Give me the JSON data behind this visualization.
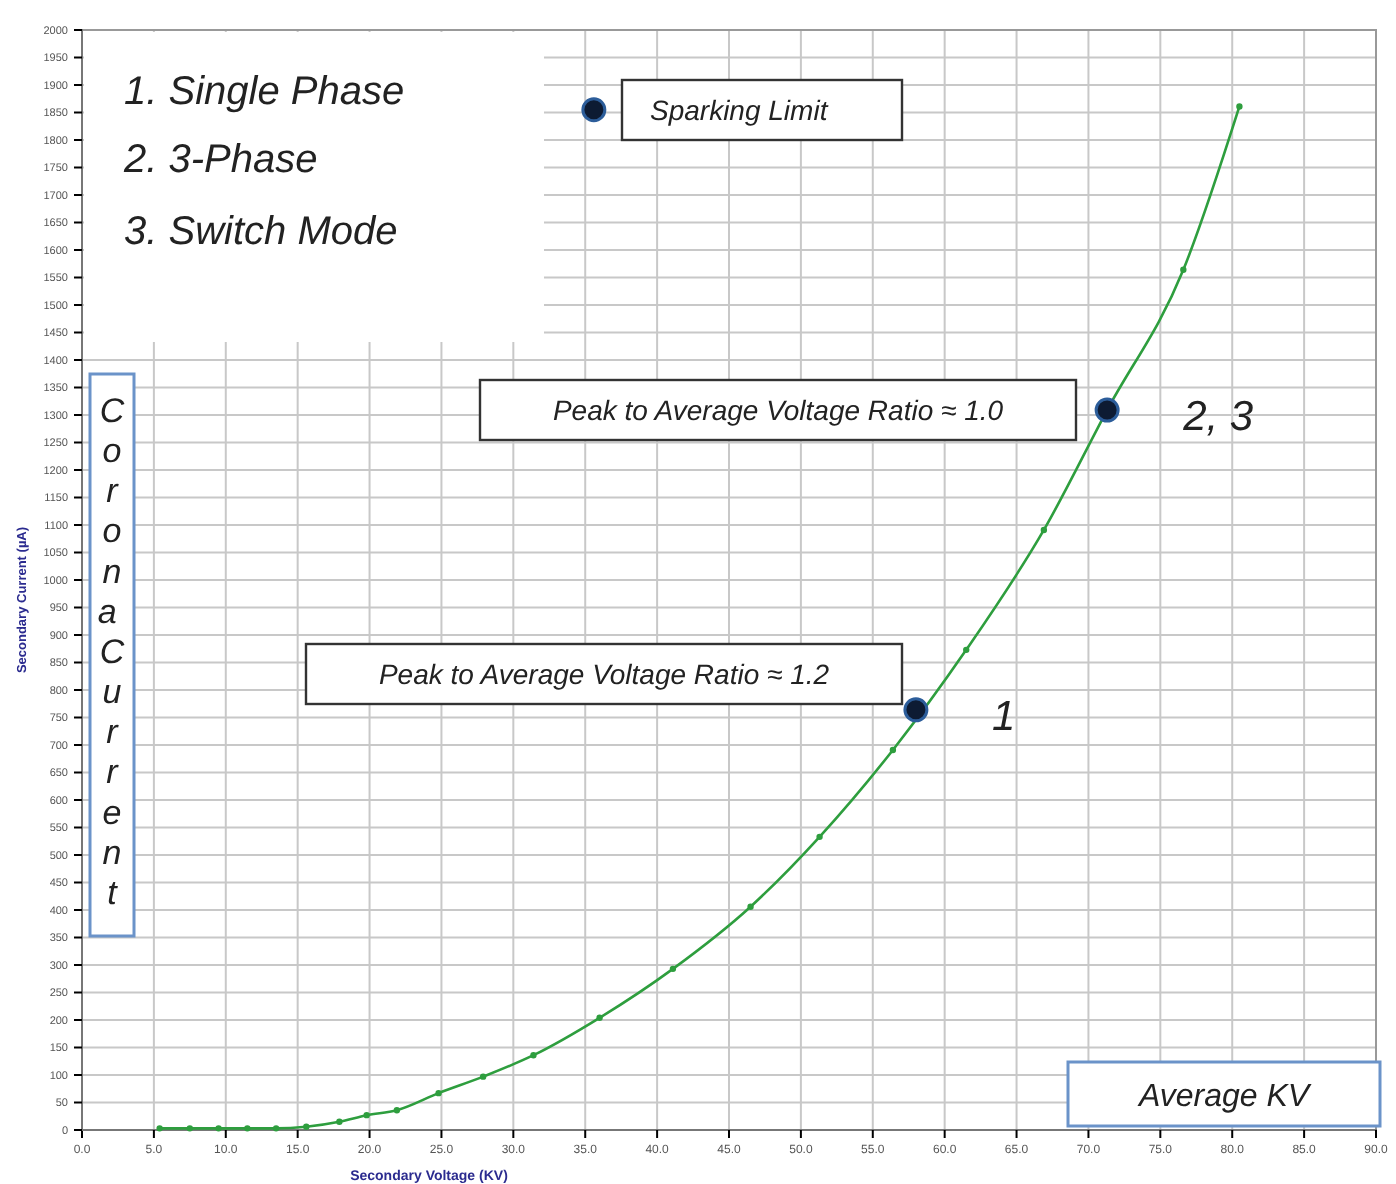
{
  "chart_data": {
    "type": "line",
    "xlabel": "Secondary Voltage (KV)",
    "ylabel": "Secondary Current (µA)",
    "xlim": [
      0,
      90
    ],
    "ylim": [
      0,
      2000
    ],
    "xticks": [
      {
        "value": 0,
        "label": "0.0"
      },
      {
        "value": 5,
        "label": "5.0"
      },
      {
        "value": 10,
        "label": "10.0"
      },
      {
        "value": 15,
        "label": "15.0"
      },
      {
        "value": 20,
        "label": "20.0"
      },
      {
        "value": 25,
        "label": "25.0"
      },
      {
        "value": 30,
        "label": "30.0"
      },
      {
        "value": 35,
        "label": "35.0"
      },
      {
        "value": 40,
        "label": "40.0"
      },
      {
        "value": 45,
        "label": "45.0"
      },
      {
        "value": 50,
        "label": "50.0"
      },
      {
        "value": 55,
        "label": "55.0"
      },
      {
        "value": 60,
        "label": "60.0"
      },
      {
        "value": 65,
        "label": "65.0"
      },
      {
        "value": 70,
        "label": "70.0"
      },
      {
        "value": 75,
        "label": "75.0"
      },
      {
        "value": 80,
        "label": "80.0"
      },
      {
        "value": 85,
        "label": "85.0"
      },
      {
        "value": 90,
        "label": "90.0"
      }
    ],
    "yticks": [
      0,
      50,
      100,
      150,
      200,
      250,
      300,
      350,
      400,
      450,
      500,
      550,
      600,
      650,
      700,
      750,
      800,
      850,
      900,
      950,
      1000,
      1050,
      1100,
      1150,
      1200,
      1250,
      1300,
      1350,
      1400,
      1450,
      1500,
      1550,
      1600,
      1650,
      1700,
      1750,
      1800,
      1850,
      1900,
      1950,
      2000
    ],
    "grid": true,
    "marker": "circle",
    "line_style": "solid",
    "series": [
      {
        "color": "#2e9e3e",
        "x": [
          5.4,
          7.5,
          9.5,
          11.5,
          13.5,
          15.6,
          17.9,
          19.8,
          21.9,
          24.8,
          27.9,
          31.4,
          36.0,
          41.1,
          46.5,
          51.3,
          56.4,
          61.5,
          66.9,
          71.3,
          76.6,
          80.5
        ],
        "values": [
          3,
          3,
          3,
          3,
          3,
          6,
          15,
          27,
          36,
          67,
          97,
          136,
          204,
          293,
          406,
          533,
          691,
          873,
          1091,
          1309,
          1564,
          1861
        ]
      },
      {
        "type": "scatter",
        "color": "#0d1b33",
        "x": [
          35.6,
          58,
          71.3
        ],
        "values": [
          1855,
          764,
          1309
        ]
      }
    ],
    "annotations": [
      "1. Single Phase",
      "2. 3-Phase",
      "3. Switch Mode",
      "Sparking Limit",
      "Peak to Average Voltage Ratio ≈ 1.0",
      "Peak to Average Voltage Ratio ≈ 1.2",
      "Corona Current",
      "Average KV",
      {
        "text": "1",
        "x": 58,
        "y": 764
      },
      {
        "text": "2, 3",
        "x": 71.3,
        "y": 1309
      }
    ]
  }
}
